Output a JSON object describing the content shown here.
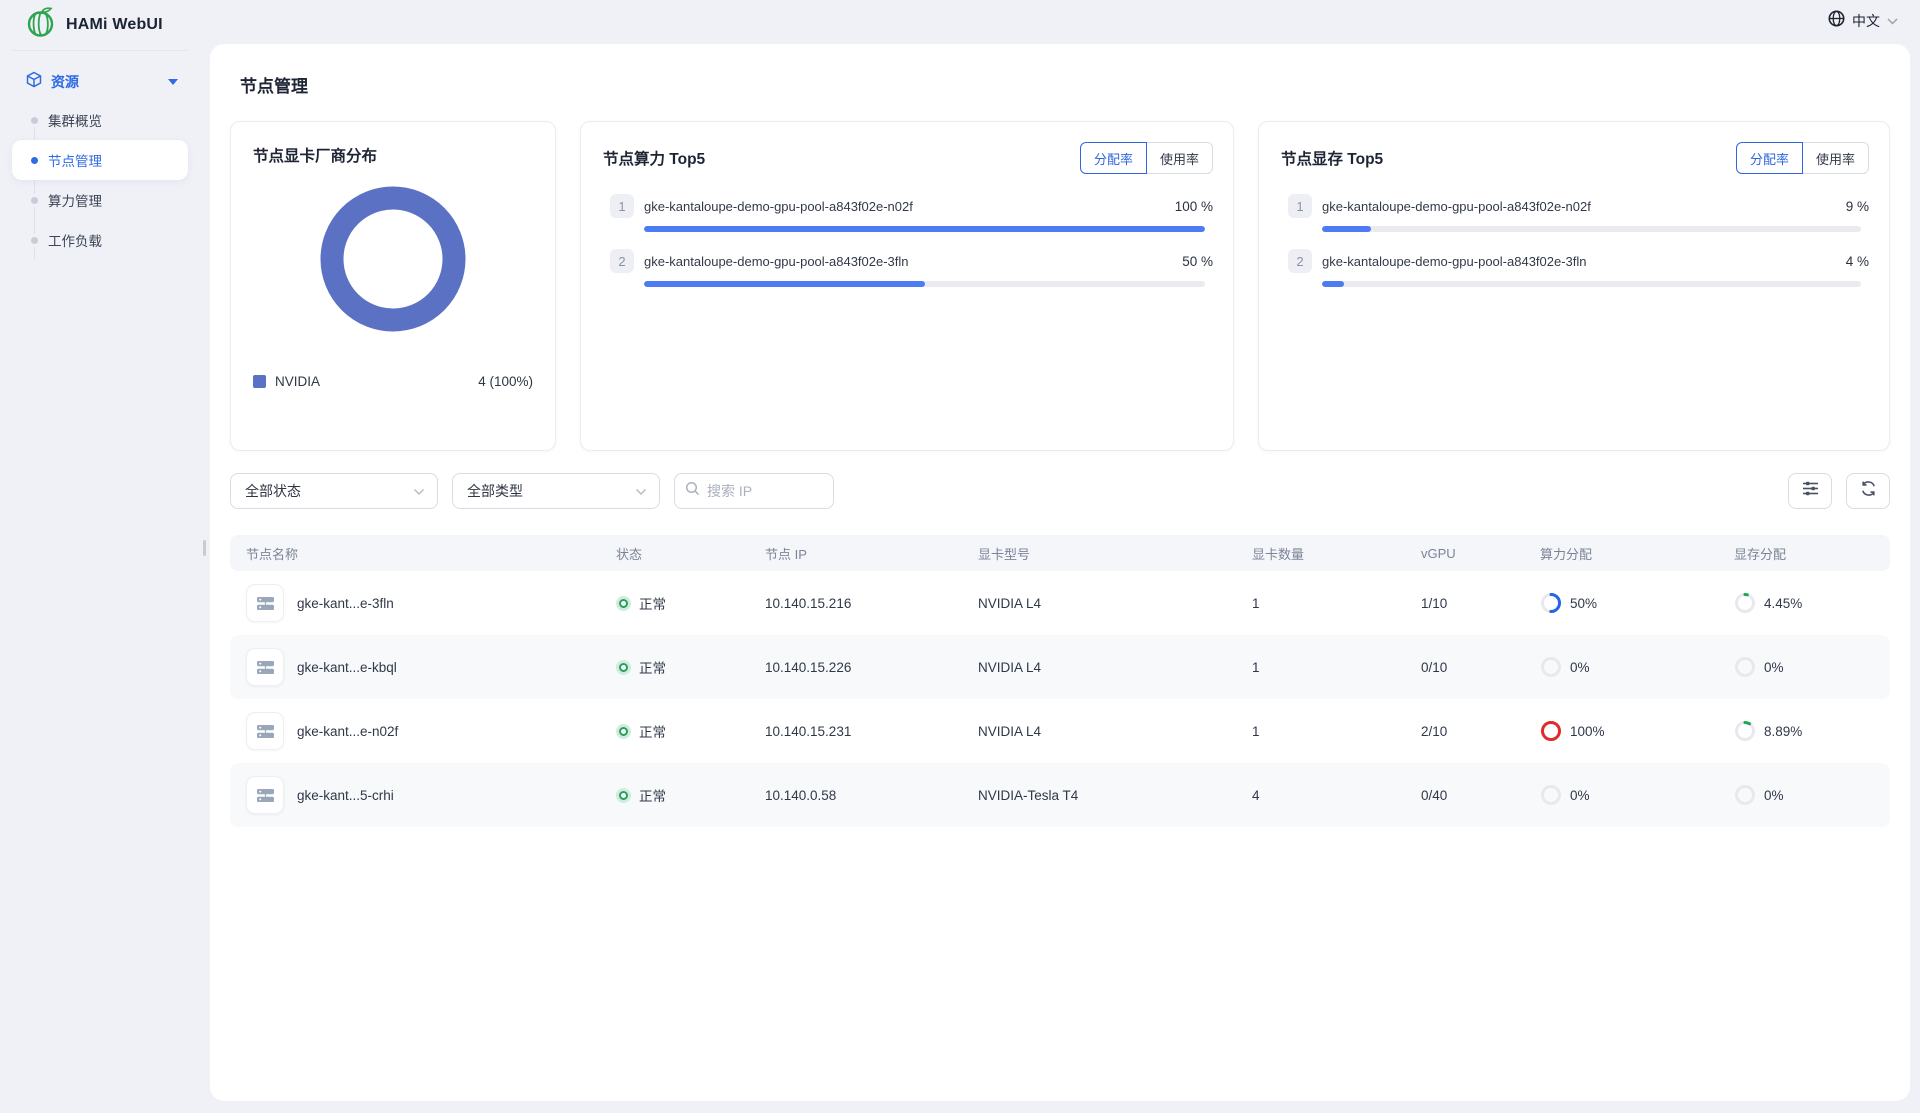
{
  "app": {
    "title": "HAMi WebUI",
    "language": "中文"
  },
  "colors": {
    "accent_blue": "#2e6be5",
    "donut_blue": "#5b71c4",
    "bar_blue": "#4c7bf4",
    "ring_red": "#e02b2b",
    "ring_green": "#1fa854",
    "status_green": "#27a05c"
  },
  "icons": {
    "logo": "hami-melon-icon",
    "language": "globe-icon",
    "section": "cube-icon",
    "section_caret": "caret-down-icon",
    "search": "magnifier-icon",
    "column_settings": "column-settings-icon",
    "refresh": "refresh-icon",
    "node": "server-icon",
    "select_caret": "chevron-down-icon"
  },
  "sidebar": {
    "section": {
      "label": "资源"
    },
    "items": [
      {
        "label": "集群概览",
        "active": false
      },
      {
        "label": "节点管理",
        "active": true
      },
      {
        "label": "算力管理",
        "active": false
      },
      {
        "label": "工作负载",
        "active": false
      }
    ]
  },
  "page": {
    "title": "节点管理"
  },
  "vendor_card": {
    "title": "节点显卡厂商分布",
    "donut": {
      "percent": 100,
      "color": "#5b71c4"
    },
    "legend": [
      {
        "label": "NVIDIA",
        "value": "4 (100%)",
        "color": "#5b71c4"
      }
    ]
  },
  "top5_cards": [
    {
      "title": "节点算力 Top5",
      "toggle": [
        "分配率",
        "使用率"
      ],
      "active_toggle": "分配率",
      "rows": [
        {
          "rank": "1",
          "name": "gke-kantaloupe-demo-gpu-pool-a843f02e-n02f",
          "value": "100 %",
          "percent": 100
        },
        {
          "rank": "2",
          "name": "gke-kantaloupe-demo-gpu-pool-a843f02e-3fln",
          "value": "50 %",
          "percent": 50
        }
      ]
    },
    {
      "title": "节点显存 Top5",
      "toggle": [
        "分配率",
        "使用率"
      ],
      "active_toggle": "分配率",
      "rows": [
        {
          "rank": "1",
          "name": "gke-kantaloupe-demo-gpu-pool-a843f02e-n02f",
          "value": "9 %",
          "percent": 9
        },
        {
          "rank": "2",
          "name": "gke-kantaloupe-demo-gpu-pool-a843f02e-3fln",
          "value": "4 %",
          "percent": 4
        }
      ]
    }
  ],
  "filters": {
    "status_select": "全部状态",
    "type_select": "全部类型",
    "search_placeholder": "搜索 IP"
  },
  "table": {
    "columns": [
      "节点名称",
      "状态",
      "节点 IP",
      "显卡型号",
      "显卡数量",
      "vGPU",
      "算力分配",
      "显存分配"
    ],
    "rows": [
      {
        "name": "gke-kant...e-3fln",
        "status": "正常",
        "ip": "10.140.15.216",
        "model": "NVIDIA L4",
        "count": "1",
        "vgpu": "1/10",
        "compute": {
          "label": "50%",
          "percent": 50,
          "color": "#2563eb"
        },
        "memory": {
          "label": "4.45%",
          "percent": 4.45,
          "color": "#1fa854"
        }
      },
      {
        "name": "gke-kant...e-kbql",
        "status": "正常",
        "ip": "10.140.15.226",
        "model": "NVIDIA L4",
        "count": "1",
        "vgpu": "0/10",
        "compute": {
          "label": "0%",
          "percent": 0,
          "color": "#c9ced8"
        },
        "memory": {
          "label": "0%",
          "percent": 0,
          "color": "#c9ced8"
        }
      },
      {
        "name": "gke-kant...e-n02f",
        "status": "正常",
        "ip": "10.140.15.231",
        "model": "NVIDIA L4",
        "count": "1",
        "vgpu": "2/10",
        "compute": {
          "label": "100%",
          "percent": 100,
          "color": "#e02b2b"
        },
        "memory": {
          "label": "8.89%",
          "percent": 8.89,
          "color": "#1fa854"
        }
      },
      {
        "name": "gke-kant...5-crhi",
        "status": "正常",
        "ip": "10.140.0.58",
        "model": "NVIDIA-Tesla T4",
        "count": "4",
        "vgpu": "0/40",
        "compute": {
          "label": "0%",
          "percent": 0,
          "color": "#c9ced8"
        },
        "memory": {
          "label": "0%",
          "percent": 0,
          "color": "#c9ced8"
        }
      }
    ]
  }
}
